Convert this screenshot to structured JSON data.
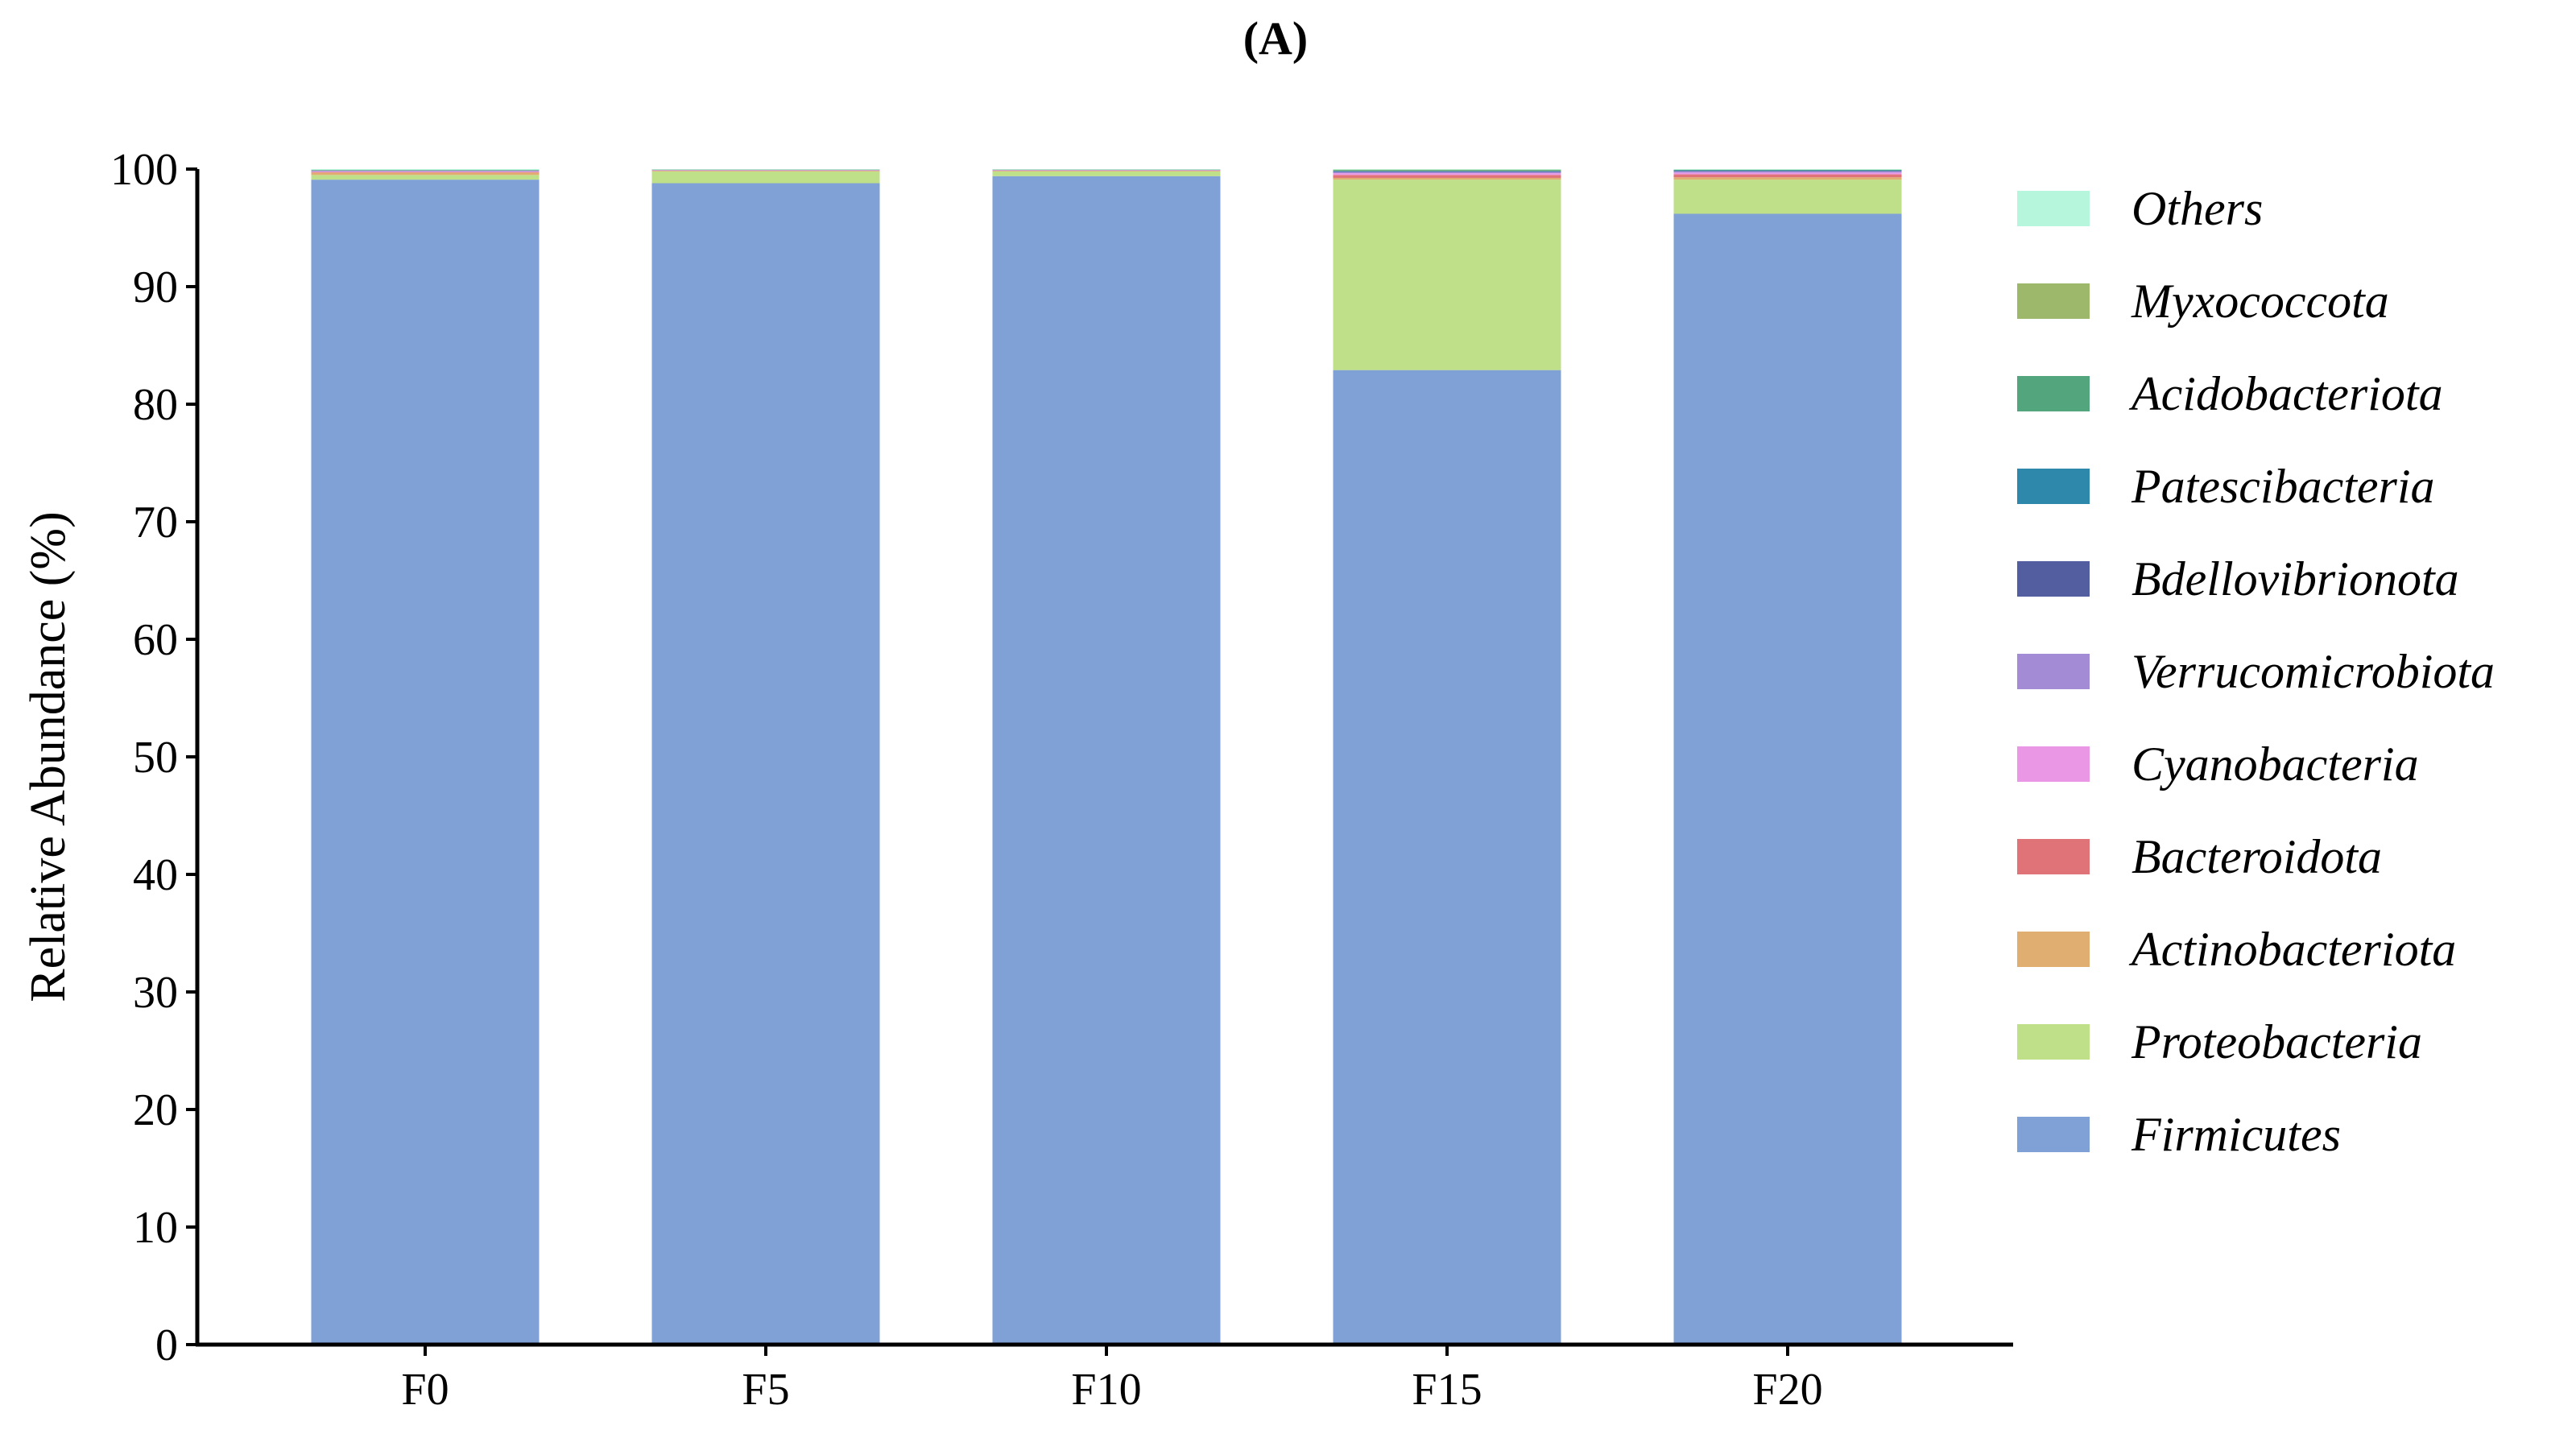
{
  "panel_label": "(A)",
  "chart_data": {
    "type": "bar",
    "stacked": true,
    "title": "",
    "xlabel": "",
    "ylabel": "Relative Abundance (%)",
    "ylim": [
      0,
      100
    ],
    "yticks": [
      0,
      10,
      20,
      30,
      40,
      50,
      60,
      70,
      80,
      90,
      100
    ],
    "categories": [
      "F0",
      "F5",
      "F10",
      "F15",
      "F20"
    ],
    "grid": false,
    "legend_position": "right",
    "series": [
      {
        "name": "Firmicutes",
        "color": "#7fa1d5",
        "values": [
          99.1,
          98.8,
          99.4,
          82.9,
          96.2
        ]
      },
      {
        "name": "Proteobacteria",
        "color": "#bfdf88",
        "values": [
          0.4,
          1.0,
          0.4,
          16.2,
          2.9
        ]
      },
      {
        "name": "Actinobacteriota",
        "color": "#dfae70",
        "values": [
          0.2,
          0.05,
          0.05,
          0.15,
          0.2
        ]
      },
      {
        "name": "Bacteroidota",
        "color": "#df7377",
        "values": [
          0.05,
          0.03,
          0.03,
          0.25,
          0.25
        ]
      },
      {
        "name": "Cyanobacteria",
        "color": "#ea97e6",
        "values": [
          0.05,
          0.02,
          0.02,
          0.15,
          0.15
        ]
      },
      {
        "name": "Verrucomicrobiota",
        "color": "#a38bd5",
        "values": [
          0.05,
          0.02,
          0.02,
          0.1,
          0.1
        ]
      },
      {
        "name": "Bdellovibrionota",
        "color": "#525e9f",
        "values": [
          0.02,
          0.01,
          0.01,
          0.05,
          0.05
        ]
      },
      {
        "name": "Patescibacteria",
        "color": "#2d88ab",
        "values": [
          0.02,
          0.01,
          0.01,
          0.05,
          0.05
        ]
      },
      {
        "name": "Acidobacteriota",
        "color": "#52a57c",
        "values": [
          0.02,
          0.01,
          0.01,
          0.05,
          0.03
        ]
      },
      {
        "name": "Myxococcota",
        "color": "#9db86a",
        "values": [
          0.02,
          0.01,
          0.01,
          0.05,
          0.02
        ]
      },
      {
        "name": "Others",
        "color": "#b6f6dc",
        "values": [
          0.07,
          0.04,
          0.04,
          0.05,
          0.05
        ]
      }
    ]
  }
}
